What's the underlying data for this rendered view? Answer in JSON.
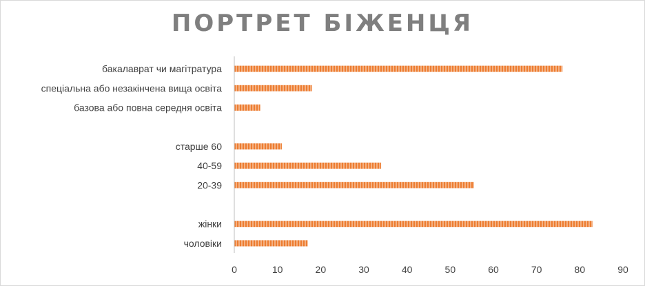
{
  "chart_data": {
    "type": "bar",
    "orientation": "horizontal",
    "title": "ПОРТРЕТ БІЖЕНЦЯ",
    "xlabel": "",
    "ylabel": "",
    "xlim": [
      0,
      90
    ],
    "xticks": [
      0,
      10,
      20,
      30,
      40,
      50,
      60,
      70,
      80,
      90
    ],
    "grid": false,
    "legend": "none",
    "bar_color": "#ED7D31",
    "categories": [
      "бакалаврат чи магітратура",
      "спеціальна або незакінчена вища освіта",
      "базова або повна середня освіта",
      "",
      "старше 60",
      "40-59",
      "20-39",
      "",
      "жінки",
      "чоловіки"
    ],
    "values": [
      76,
      18,
      6,
      null,
      11,
      34,
      55.5,
      null,
      83,
      17
    ]
  }
}
